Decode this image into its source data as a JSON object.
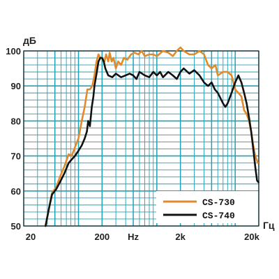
{
  "chart_data": {
    "type": "line",
    "ylabel": "дБ",
    "xlabel": "Гц",
    "x_scale": "log",
    "xlim": [
      20,
      20000
    ],
    "ylim": [
      50,
      100
    ],
    "x_ticks": [
      {
        "value": 20,
        "label": "20"
      },
      {
        "value": 200,
        "label": "200"
      },
      {
        "value": 500,
        "label": "Hz"
      },
      {
        "value": 2000,
        "label": "2k"
      },
      {
        "value": 20000,
        "label": "20k"
      }
    ],
    "y_ticks": [
      {
        "value": 50,
        "label": "50"
      },
      {
        "value": 60,
        "label": "60"
      },
      {
        "value": 70,
        "label": "70"
      },
      {
        "value": 80,
        "label": "80"
      },
      {
        "value": 90,
        "label": "90"
      },
      {
        "value": 100,
        "label": "100"
      }
    ],
    "grid": true,
    "legend_position": "bottom-right",
    "series": [
      {
        "name": "CS-730",
        "color": "#e08a2c",
        "points": [
          [
            38,
            50
          ],
          [
            42,
            55
          ],
          [
            46,
            59.5
          ],
          [
            52,
            61
          ],
          [
            58,
            64
          ],
          [
            66,
            67
          ],
          [
            75,
            70.5
          ],
          [
            82,
            70
          ],
          [
            90,
            72.5
          ],
          [
            100,
            75
          ],
          [
            110,
            80
          ],
          [
            120,
            84
          ],
          [
            130,
            89
          ],
          [
            140,
            89
          ],
          [
            150,
            90
          ],
          [
            160,
            93
          ],
          [
            170,
            97
          ],
          [
            180,
            99
          ],
          [
            190,
            98
          ],
          [
            200,
            98
          ],
          [
            215,
            97
          ],
          [
            225,
            99
          ],
          [
            240,
            97
          ],
          [
            250,
            99.5
          ],
          [
            265,
            97
          ],
          [
            280,
            98
          ],
          [
            300,
            95
          ],
          [
            320,
            97
          ],
          [
            350,
            96
          ],
          [
            380,
            98
          ],
          [
            420,
            97.5
          ],
          [
            470,
            99
          ],
          [
            520,
            99.5
          ],
          [
            580,
            99
          ],
          [
            640,
            100
          ],
          [
            700,
            98.5
          ],
          [
            800,
            99
          ],
          [
            900,
            99
          ],
          [
            1000,
            98.5
          ],
          [
            1200,
            100
          ],
          [
            1400,
            99.5
          ],
          [
            1600,
            98.5
          ],
          [
            1800,
            100
          ],
          [
            2000,
            101
          ],
          [
            2200,
            100
          ],
          [
            2600,
            99
          ],
          [
            3000,
            99
          ],
          [
            3500,
            100
          ],
          [
            4000,
            99
          ],
          [
            4500,
            96
          ],
          [
            5000,
            95
          ],
          [
            5600,
            96
          ],
          [
            6000,
            93
          ],
          [
            7000,
            94
          ],
          [
            8000,
            94
          ],
          [
            9000,
            93
          ],
          [
            10000,
            89
          ],
          [
            11000,
            88
          ],
          [
            12000,
            87
          ],
          [
            13000,
            83
          ],
          [
            14000,
            82
          ],
          [
            15000,
            80
          ],
          [
            16000,
            77
          ],
          [
            17000,
            73
          ],
          [
            18000,
            70
          ],
          [
            19500,
            68
          ]
        ]
      },
      {
        "name": "CS-740",
        "color": "#111111",
        "points": [
          [
            38,
            50
          ],
          [
            42,
            55
          ],
          [
            46,
            59
          ],
          [
            52,
            60.5
          ],
          [
            58,
            62.5
          ],
          [
            66,
            65
          ],
          [
            75,
            68
          ],
          [
            82,
            69
          ],
          [
            90,
            70
          ],
          [
            100,
            71.5
          ],
          [
            110,
            73
          ],
          [
            120,
            75
          ],
          [
            128,
            77
          ],
          [
            133,
            80
          ],
          [
            140,
            78.5
          ],
          [
            148,
            84
          ],
          [
            155,
            87
          ],
          [
            160,
            90
          ],
          [
            170,
            93.5
          ],
          [
            180,
            97
          ],
          [
            190,
            98
          ],
          [
            200,
            98
          ],
          [
            210,
            97
          ],
          [
            220,
            95
          ],
          [
            240,
            93
          ],
          [
            270,
            92.5
          ],
          [
            300,
            93.5
          ],
          [
            350,
            92.5
          ],
          [
            400,
            93
          ],
          [
            450,
            93.5
          ],
          [
            500,
            93
          ],
          [
            550,
            92
          ],
          [
            600,
            94
          ],
          [
            700,
            93
          ],
          [
            800,
            92.5
          ],
          [
            900,
            94
          ],
          [
            1000,
            93
          ],
          [
            1100,
            94
          ],
          [
            1200,
            92.5
          ],
          [
            1400,
            94
          ],
          [
            1600,
            93
          ],
          [
            1800,
            92
          ],
          [
            2000,
            94
          ],
          [
            2200,
            95
          ],
          [
            2600,
            93.5
          ],
          [
            3000,
            94.5
          ],
          [
            3500,
            93
          ],
          [
            4000,
            91
          ],
          [
            4500,
            90
          ],
          [
            5000,
            91
          ],
          [
            5500,
            89
          ],
          [
            6000,
            88
          ],
          [
            7000,
            85
          ],
          [
            7500,
            84
          ],
          [
            8000,
            85
          ],
          [
            9000,
            88
          ],
          [
            10000,
            91
          ],
          [
            11000,
            93
          ],
          [
            12000,
            91
          ],
          [
            13000,
            88
          ],
          [
            14000,
            85
          ],
          [
            15000,
            81
          ],
          [
            16000,
            77
          ],
          [
            17000,
            72
          ],
          [
            18000,
            67
          ],
          [
            19000,
            63
          ],
          [
            19800,
            62.5
          ]
        ]
      }
    ]
  },
  "colors": {
    "grid": "#1ea2b8",
    "background": "#ffffff",
    "frame": "#222222"
  }
}
